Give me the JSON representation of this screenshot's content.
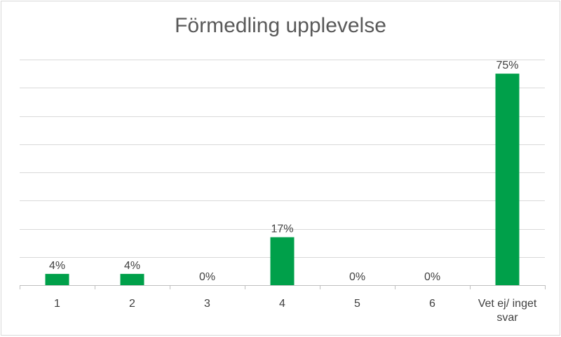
{
  "chart_data": {
    "type": "bar",
    "title": "Förmedling upplevelse",
    "categories": [
      "1",
      "2",
      "3",
      "4",
      "5",
      "6",
      "Vet ej/ inget svar"
    ],
    "category_lines": [
      [
        "1"
      ],
      [
        "2"
      ],
      [
        "3"
      ],
      [
        "4"
      ],
      [
        "5"
      ],
      [
        "6"
      ],
      [
        "Vet ej/ inget",
        "svar"
      ]
    ],
    "values": [
      4,
      4,
      0,
      17,
      0,
      0,
      75
    ],
    "data_labels": [
      "4%",
      "4%",
      "0%",
      "17%",
      "0%",
      "0%",
      "75%"
    ],
    "ylim": [
      0,
      80
    ],
    "y_gridline_step": 10,
    "y_tick_labels_visible": false,
    "grid": true,
    "legend": "none",
    "bar_color": "#00a04a"
  }
}
